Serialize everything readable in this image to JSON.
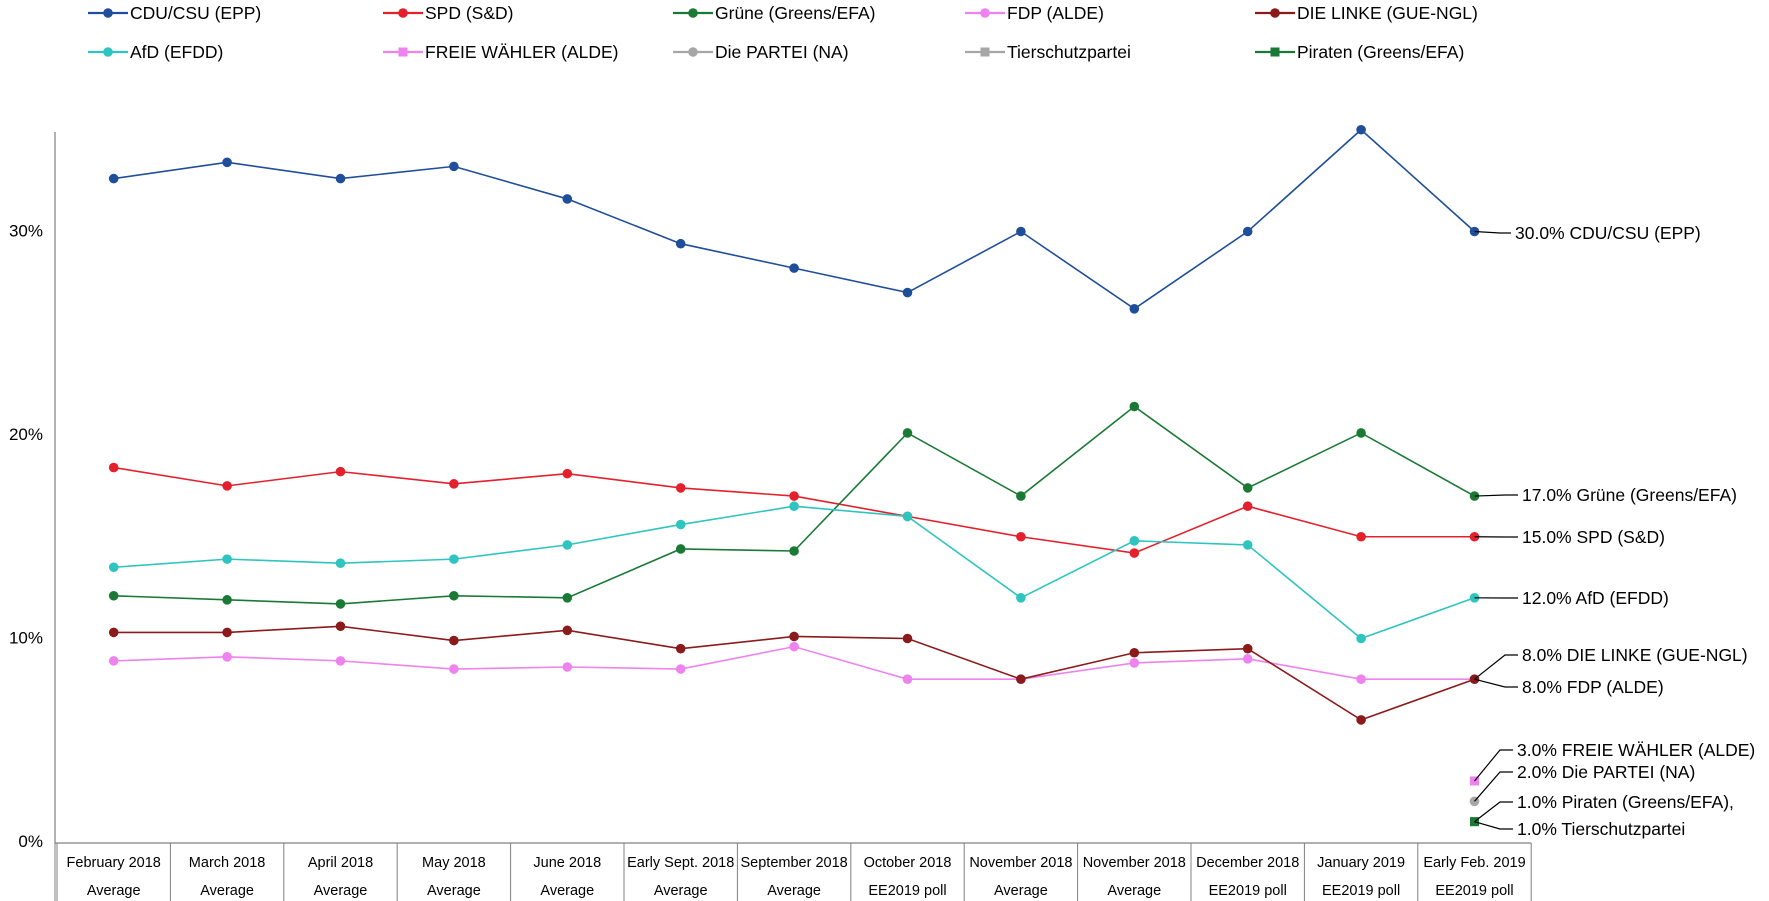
{
  "chart_data": {
    "type": "line",
    "title": "",
    "xlabel": "",
    "ylabel": "",
    "ylim": [
      0,
      35
    ],
    "yticks": [
      0,
      10,
      20,
      30
    ],
    "ytick_labels": [
      "0%",
      "10%",
      "20%",
      "30%"
    ],
    "grid": false,
    "legend": "top",
    "categories": [
      [
        "February 2018",
        "Average"
      ],
      [
        "March 2018",
        "Average"
      ],
      [
        "April 2018",
        "Average"
      ],
      [
        "May 2018",
        "Average"
      ],
      [
        "June 2018",
        "Average"
      ],
      [
        "Early Sept. 2018",
        "Average"
      ],
      [
        "September 2018",
        "Average"
      ],
      [
        "October 2018",
        "EE2019 poll"
      ],
      [
        "November 2018",
        "Average"
      ],
      [
        "November 2018",
        "Average"
      ],
      [
        "December 2018",
        "EE2019 poll"
      ],
      [
        "January 2019",
        "EE2019 poll"
      ],
      [
        "Early Feb. 2019",
        "EE2019 poll"
      ]
    ],
    "series": [
      {
        "name": "CDU/CSU (EPP)",
        "color": "#1f4e9a",
        "marker": "circle",
        "values": [
          32.6,
          33.4,
          32.6,
          33.2,
          31.6,
          29.4,
          28.2,
          27.0,
          30.0,
          26.2,
          30.0,
          35.0,
          30.0
        ],
        "label": "30.0% CDU/CSU (EPP)"
      },
      {
        "name": "SPD (S&D)",
        "color": "#e3202b",
        "marker": "circle",
        "values": [
          18.4,
          17.5,
          18.2,
          17.6,
          18.1,
          17.4,
          17.0,
          16.0,
          15.0,
          14.2,
          16.5,
          15.0,
          15.0
        ],
        "label": "15.0% SPD (S&D)"
      },
      {
        "name": "Grüne (Greens/EFA)",
        "color": "#1a7a35",
        "marker": "circle",
        "values": [
          12.1,
          11.9,
          11.7,
          12.1,
          12.0,
          14.4,
          14.3,
          20.1,
          17.0,
          21.4,
          17.4,
          20.1,
          17.0
        ],
        "label": "17.0% Grüne (Greens/EFA)"
      },
      {
        "name": "FDP (ALDE)",
        "color": "#ee82ee",
        "marker": "circle",
        "values": [
          8.9,
          9.1,
          8.9,
          8.5,
          8.6,
          8.5,
          9.6,
          8.0,
          8.0,
          8.8,
          9.0,
          8.0,
          8.0
        ],
        "label": "8.0% FDP (ALDE)"
      },
      {
        "name": "DIE LINKE (GUE-NGL)",
        "color": "#8b1a1a",
        "marker": "circle",
        "values": [
          10.3,
          10.3,
          10.6,
          9.9,
          10.4,
          9.5,
          10.1,
          10.0,
          8.0,
          9.3,
          9.5,
          6.0,
          8.0
        ],
        "label": "8.0% DIE LINKE (GUE-NGL)"
      },
      {
        "name": "AfD (EFDD)",
        "color": "#2ec4c0",
        "marker": "circle",
        "values": [
          13.5,
          13.9,
          13.7,
          13.9,
          14.6,
          15.6,
          16.5,
          16.0,
          12.0,
          14.8,
          14.6,
          10.0,
          12.0
        ],
        "label": "12.0% AfD (EFDD)"
      },
      {
        "name": "FREIE WÄHLER (ALDE)",
        "color": "#ee82ee",
        "marker": "square",
        "values": [
          null,
          null,
          null,
          null,
          null,
          null,
          null,
          null,
          null,
          null,
          null,
          null,
          3.0
        ],
        "label": "3.0% FREIE WÄHLER (ALDE)"
      },
      {
        "name": "Die PARTEI (NA)",
        "color": "#a6a6a6",
        "marker": "circle",
        "values": [
          null,
          null,
          null,
          null,
          null,
          null,
          null,
          null,
          null,
          null,
          null,
          null,
          2.0
        ],
        "label": "2.0% Die PARTEI (NA)"
      },
      {
        "name": "Tierschutzpartei",
        "color": "#a6a6a6",
        "marker": "square",
        "values": [
          null,
          null,
          null,
          null,
          null,
          null,
          null,
          null,
          null,
          null,
          null,
          null,
          1.0
        ],
        "label": "1.0% Tierschutzpartei"
      },
      {
        "name": "Piraten (Greens/EFA)",
        "color": "#1a7a35",
        "marker": "square",
        "values": [
          null,
          null,
          null,
          null,
          null,
          null,
          null,
          null,
          null,
          null,
          null,
          null,
          1.0
        ],
        "label": "1.0% Piraten (Greens/EFA),"
      }
    ]
  }
}
